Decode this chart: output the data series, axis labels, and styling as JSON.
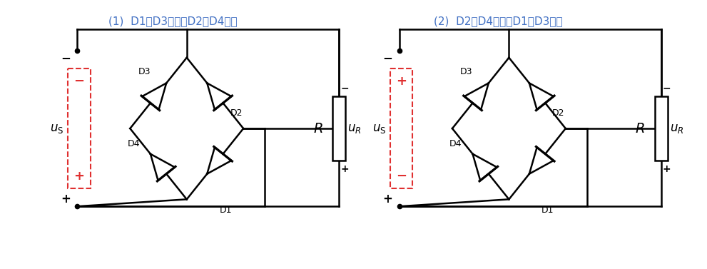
{
  "bg_color": "#ffffff",
  "line_color": "#000000",
  "red_color": "#e03030",
  "blue_color": "#4472c4",
  "fig_width": 9.91,
  "fig_height": 3.77,
  "dpi": 100,
  "caption1": "(1)  D1、D3导通，D2、D4截止",
  "caption2": "(2)  D2、D4导通，D1、D3截止",
  "caption_color": "#4472c4",
  "caption_fontsize": 11
}
